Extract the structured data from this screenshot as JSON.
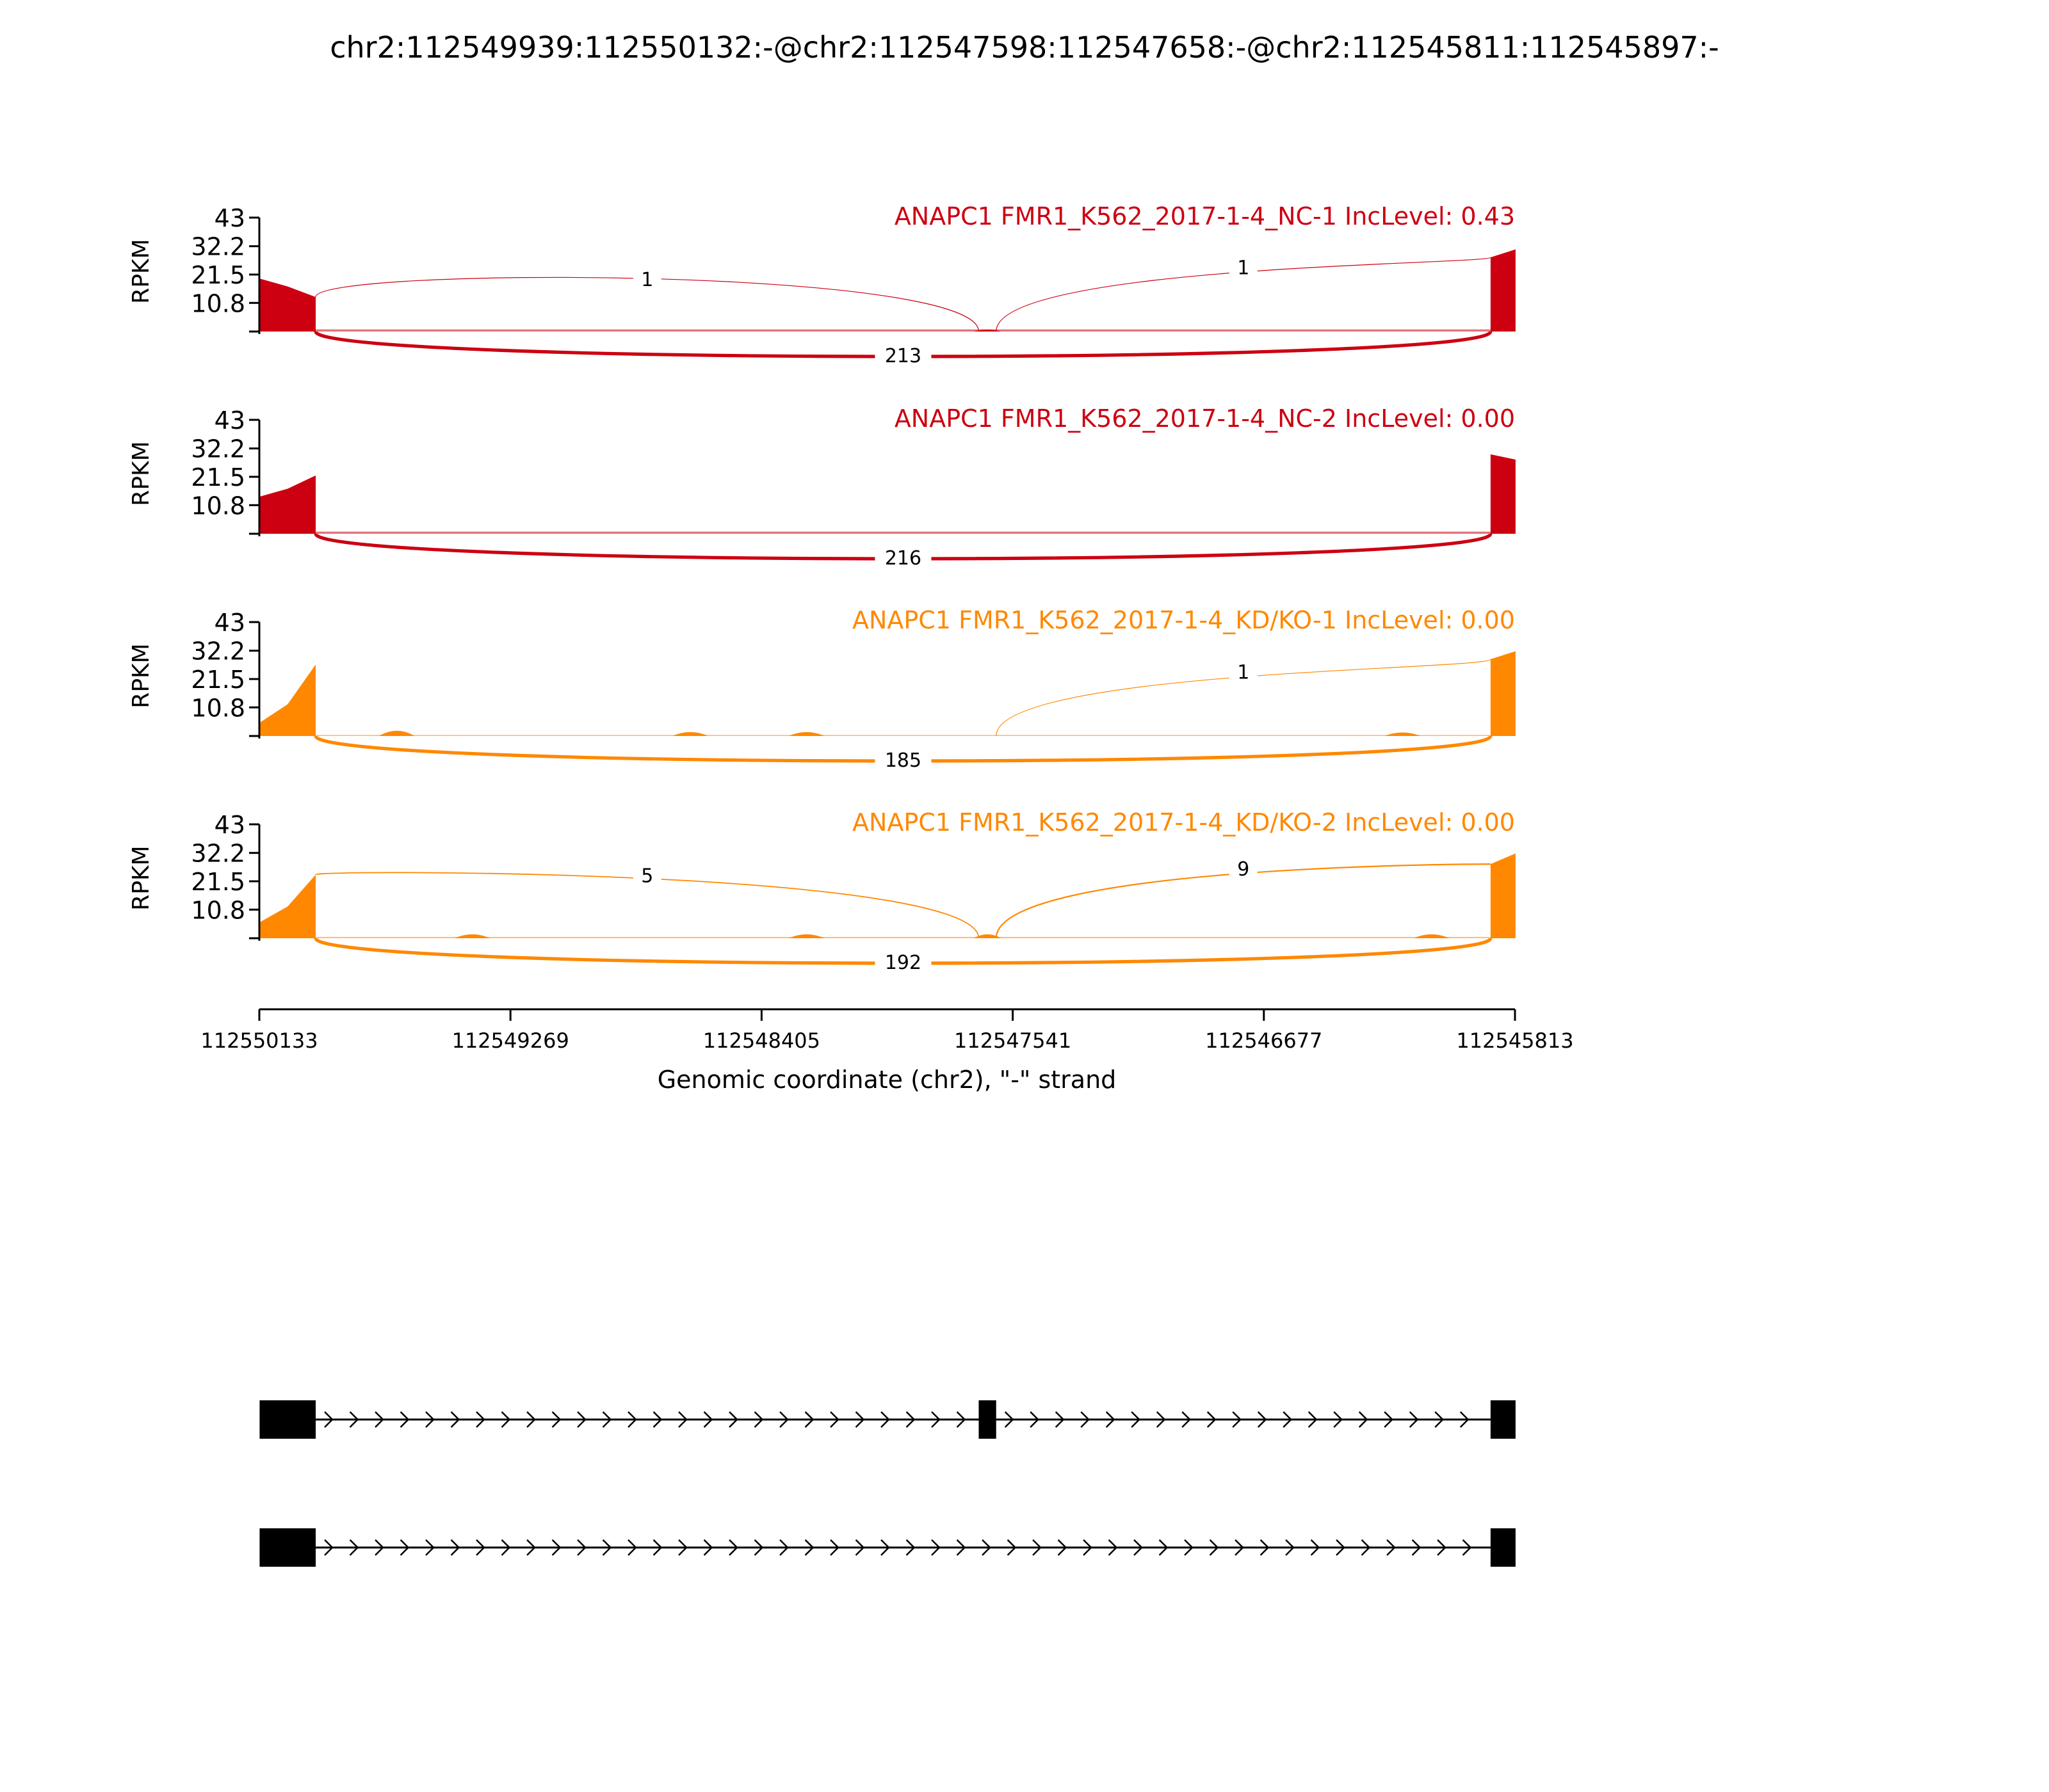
{
  "chart_data": {
    "type": "sashimi",
    "title": "chr2:112549939:112550132:-@chr2:112547598:112547658:-@chr2:112545811:112545897:-",
    "xlabel": "Genomic coordinate (chr2), \"-\" strand",
    "ylabel": "RPKM",
    "xlim": [
      112550133,
      112545813
    ],
    "xticks": [
      "112550133",
      "112549269",
      "112548405",
      "112547541",
      "112546677",
      "112545813"
    ],
    "yticks": [
      "43",
      "32.2",
      "21.5",
      "10.8"
    ],
    "ylim": [
      0,
      43
    ],
    "exons": [
      {
        "start": 112550132,
        "end": 112549939
      },
      {
        "start": 112547658,
        "end": 112547598
      },
      {
        "start": 112545897,
        "end": 112545811
      }
    ],
    "tracks": [
      {
        "label": "ANAPC1 FMR1_K562_2017-1-4_NC-1 IncLevel: 0.43",
        "color": "#cc0011",
        "coverage": {
          "exon1": [
            20,
            17,
            13
          ],
          "exon2": 0.5,
          "exon3": [
            28,
            31
          ],
          "intron": 0.8,
          "bumps": []
        },
        "junctions": [
          {
            "from": 112549939,
            "to": 112547658,
            "count": "1",
            "side": "above",
            "height": 21.5,
            "width": 0.6
          },
          {
            "from": 112547598,
            "to": 112545897,
            "count": "1",
            "side": "above",
            "height": 26,
            "width": 0.6
          },
          {
            "from": 112549939,
            "to": 112545897,
            "count": "213",
            "side": "below",
            "height": 9,
            "width": 2.6
          }
        ]
      },
      {
        "label": "ANAPC1 FMR1_K562_2017-1-4_NC-2 IncLevel: 0.00",
        "color": "#cc0011",
        "coverage": {
          "exon1": [
            14,
            17,
            22
          ],
          "exon2": 0,
          "exon3": [
            30,
            28
          ],
          "intron": 0.8,
          "bumps": []
        },
        "junctions": [
          {
            "from": 112549939,
            "to": 112545897,
            "count": "216",
            "side": "below",
            "height": 9,
            "width": 2.6
          }
        ]
      },
      {
        "label": "ANAPC1 FMR1_K562_2017-1-4_KD/KO-1 IncLevel: 0.00",
        "color": "#ff8800",
        "coverage": {
          "exon1": [
            5,
            12,
            27
          ],
          "exon2": 0,
          "exon3": [
            29,
            32
          ],
          "intron": 0.4,
          "bumps": [
            {
              "pos": 112549660,
              "height": 2.5
            },
            {
              "pos": 112548650,
              "height": 1.5
            },
            {
              "pos": 112548250,
              "height": 1.5
            },
            {
              "pos": 112546200,
              "height": 1.2
            }
          ]
        },
        "junctions": [
          {
            "from": 112547598,
            "to": 112545897,
            "count": "1",
            "side": "above",
            "height": 26,
            "width": 0.6
          },
          {
            "from": 112549939,
            "to": 112545897,
            "count": "185",
            "side": "below",
            "height": 9,
            "width": 2.6
          }
        ]
      },
      {
        "label": "ANAPC1 FMR1_K562_2017-1-4_KD/KO-2 IncLevel: 0.00",
        "color": "#ff8800",
        "coverage": {
          "exon1": [
            6,
            12,
            24
          ],
          "exon2": 2,
          "exon3": [
            28,
            32
          ],
          "intron": 0.5,
          "bumps": [
            {
              "pos": 112549400,
              "height": 1.5
            },
            {
              "pos": 112548250,
              "height": 1.5
            },
            {
              "pos": 112546100,
              "height": 1.5
            }
          ]
        },
        "junctions": [
          {
            "from": 112549939,
            "to": 112547658,
            "count": "5",
            "side": "above",
            "height": 25.5,
            "width": 0.9
          },
          {
            "from": 112547598,
            "to": 112545897,
            "count": "9",
            "side": "above",
            "height": 28,
            "width": 1.1
          },
          {
            "from": 112549939,
            "to": 112545897,
            "count": "192",
            "side": "below",
            "height": 9,
            "width": 2.6
          }
        ]
      }
    ],
    "isoforms": [
      {
        "exons": [
          0,
          1,
          2
        ]
      },
      {
        "exons": [
          0,
          2
        ]
      }
    ]
  }
}
